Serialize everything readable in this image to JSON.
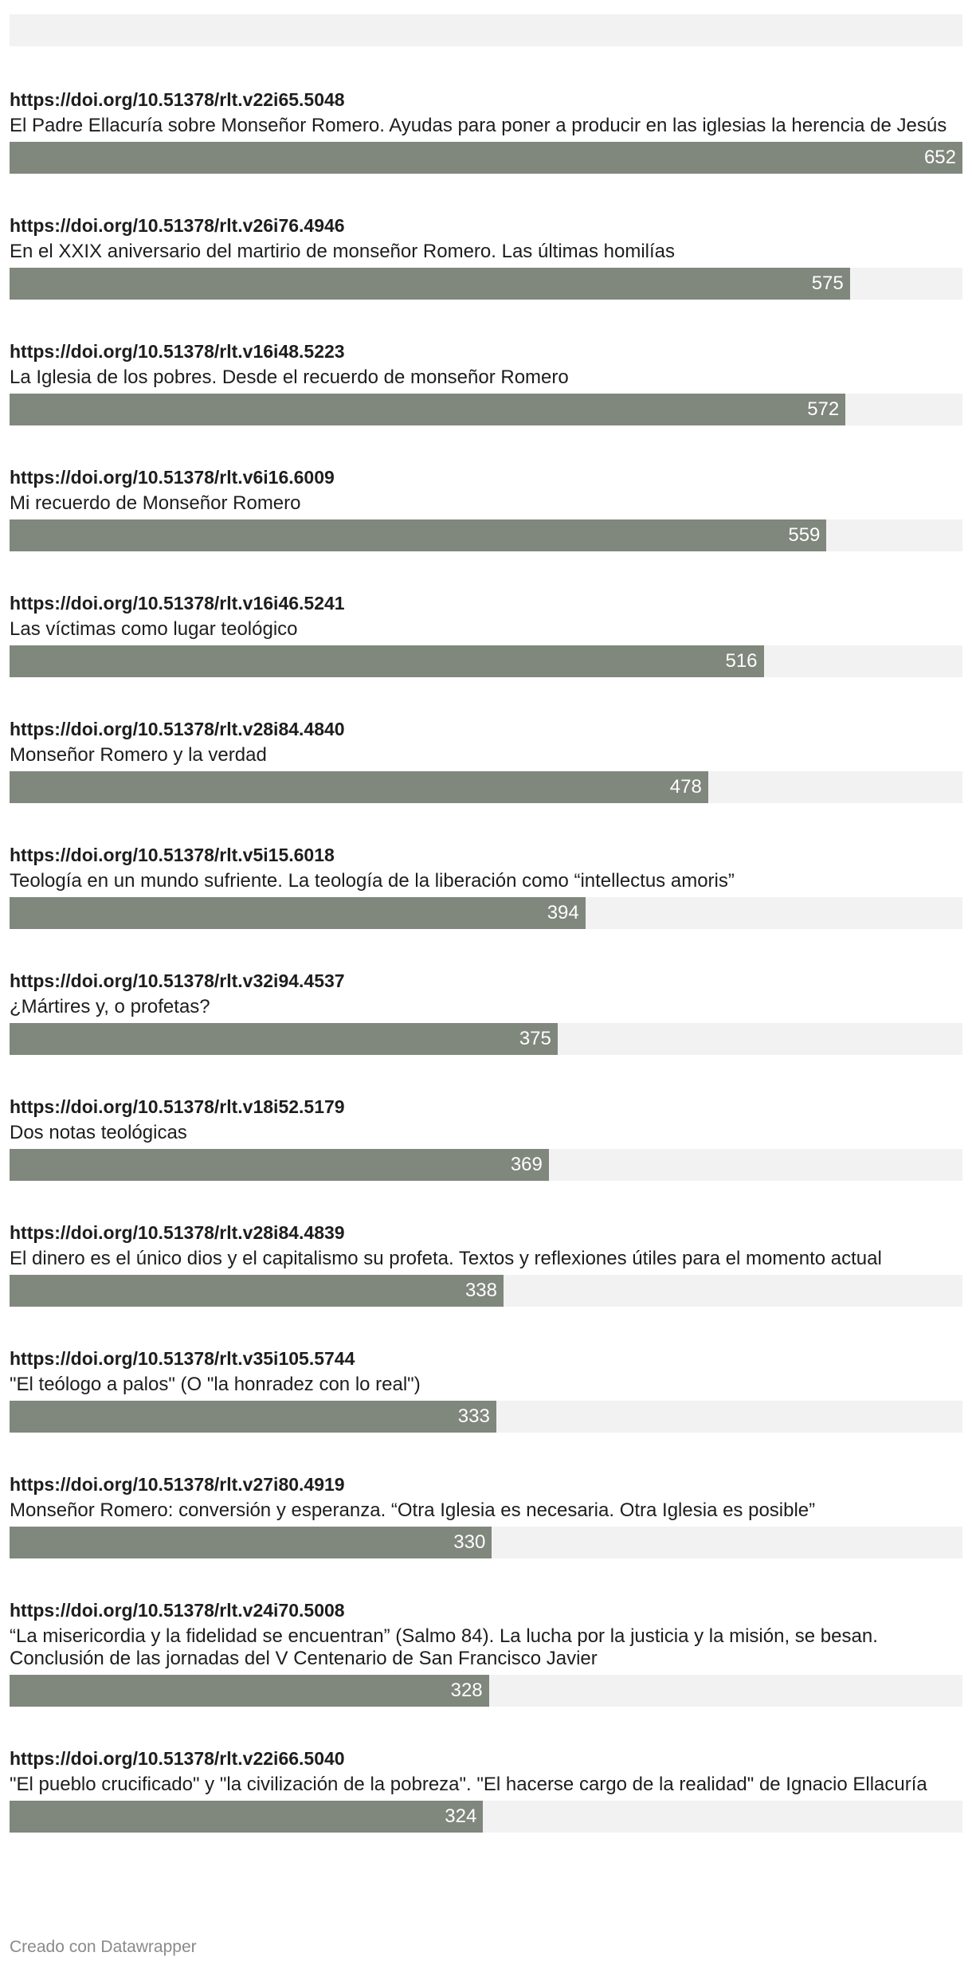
{
  "chart_data": {
    "type": "bar",
    "orientation": "horizontal",
    "xlim": [
      0,
      652
    ],
    "rows": [
      {
        "doi": "https://doi.org/10.51378/rlt.v22i65.5048",
        "title": "El Padre Ellacuría sobre Monseñor Romero. Ayudas para poner a producir en las iglesias la herencia de Jesús",
        "value": 652
      },
      {
        "doi": "https://doi.org/10.51378/rlt.v26i76.4946",
        "title": "En el XXIX aniversario del martirio de monseñor Romero. Las últimas homilías",
        "value": 575
      },
      {
        "doi": "https://doi.org/10.51378/rlt.v16i48.5223",
        "title": "La Iglesia de los pobres. Desde el recuerdo de monseñor Romero",
        "value": 572
      },
      {
        "doi": "https://doi.org/10.51378/rlt.v6i16.6009",
        "title": "Mi recuerdo de Monseñor Romero",
        "value": 559
      },
      {
        "doi": "https://doi.org/10.51378/rlt.v16i46.5241",
        "title": "Las víctimas como lugar teológico",
        "value": 516
      },
      {
        "doi": "https://doi.org/10.51378/rlt.v28i84.4840",
        "title": "Monseñor Romero y la verdad",
        "value": 478
      },
      {
        "doi": "https://doi.org/10.51378/rlt.v5i15.6018",
        "title": "Teología en un mundo sufriente. La teología de la liberación como “intellectus amoris”",
        "value": 394
      },
      {
        "doi": "https://doi.org/10.51378/rlt.v32i94.4537",
        "title": "¿Mártires y, o profetas?",
        "value": 375
      },
      {
        "doi": "https://doi.org/10.51378/rlt.v18i52.5179",
        "title": "Dos notas teológicas",
        "value": 369
      },
      {
        "doi": "https://doi.org/10.51378/rlt.v28i84.4839",
        "title": "El dinero es el único dios y el capitalismo su profeta. Textos y reflexiones útiles para el momento actual",
        "value": 338
      },
      {
        "doi": "https://doi.org/10.51378/rlt.v35i105.5744",
        "title": "\"El teólogo a palos\" (O \"la honradez con lo real\")",
        "value": 333
      },
      {
        "doi": "https://doi.org/10.51378/rlt.v27i80.4919",
        "title": "Monseñor Romero: conversión y esperanza. “Otra Iglesia es necesaria. Otra Iglesia es posible”",
        "value": 330
      },
      {
        "doi": "https://doi.org/10.51378/rlt.v24i70.5008",
        "title": "“La misericordia y la fidelidad se encuentran” (Salmo 84). La lucha por la justicia y la misión, se besan. Conclusión de las jornadas del V Centenario de San Francisco Javier",
        "value": 328
      },
      {
        "doi": "https://doi.org/10.51378/rlt.v22i66.5040",
        "title": "\"El pueblo crucificado\" y \"la civilización de la pobreza\". \"El hacerse cargo de la realidad\" de Ignacio Ellacuría",
        "value": 324
      }
    ]
  },
  "colors": {
    "bar": "#80877d",
    "track": "#f2f2f2",
    "value_text": "#ffffff"
  },
  "footer": {
    "credit": "Creado con Datawrapper"
  }
}
